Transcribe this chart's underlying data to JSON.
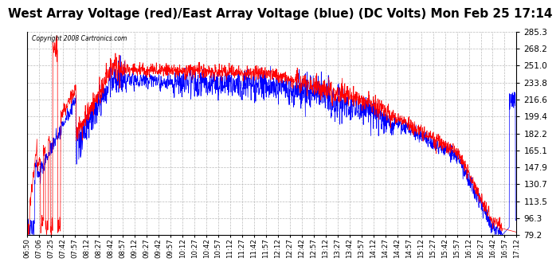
{
  "title": "West Array Voltage (red)/East Array Voltage (blue) (DC Volts) Mon Feb 25 17:14",
  "copyright": "Copyright 2008 Cartronics.com",
  "ylabel_right": [
    "285.3",
    "268.2",
    "251.0",
    "233.8",
    "216.6",
    "199.4",
    "182.2",
    "165.1",
    "147.9",
    "130.7",
    "113.5",
    "96.3",
    "79.2"
  ],
  "ymin": 79.2,
  "ymax": 285.3,
  "background_color": "#ffffff",
  "plot_background": "#ffffff",
  "grid_color": "#bbbbbb",
  "title_fontsize": 11,
  "red_color": "#ff0000",
  "blue_color": "#0000ff",
  "x_tick_labels": [
    "06:50",
    "07:06",
    "07:25",
    "07:42",
    "07:57",
    "08:12",
    "08:27",
    "08:42",
    "08:57",
    "09:12",
    "09:27",
    "09:42",
    "09:57",
    "10:12",
    "10:27",
    "10:42",
    "10:57",
    "11:12",
    "11:27",
    "11:42",
    "11:57",
    "12:12",
    "12:27",
    "12:42",
    "12:57",
    "13:12",
    "13:27",
    "13:42",
    "13:57",
    "14:12",
    "14:27",
    "14:42",
    "14:57",
    "15:12",
    "15:27",
    "15:42",
    "15:57",
    "16:12",
    "16:27",
    "16:42",
    "16:57",
    "17:12"
  ]
}
